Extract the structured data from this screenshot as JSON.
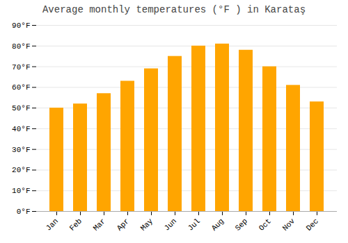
{
  "chart_data": {
    "type": "bar",
    "title": "Average monthly temperatures (°F ) in Karataş",
    "categories": [
      "Jan",
      "Feb",
      "Mar",
      "Apr",
      "May",
      "Jun",
      "Jul",
      "Aug",
      "Sep",
      "Oct",
      "Nov",
      "Dec"
    ],
    "values": [
      50,
      52,
      57,
      63,
      69,
      75,
      80,
      81,
      78,
      70,
      61,
      53
    ],
    "color": "#FFA500",
    "ylim": [
      0,
      90
    ],
    "yticks": [
      {
        "value": 0,
        "label": "0°F"
      },
      {
        "value": 10,
        "label": "10°F"
      },
      {
        "value": 20,
        "label": "20°F"
      },
      {
        "value": 30,
        "label": "30°F"
      },
      {
        "value": 40,
        "label": "40°F"
      },
      {
        "value": 50,
        "label": "50°F"
      },
      {
        "value": 60,
        "label": "60°F"
      },
      {
        "value": 70,
        "label": "70°F"
      },
      {
        "value": 80,
        "label": "80°F"
      },
      {
        "value": 90,
        "label": "90°F"
      }
    ],
    "grid": true
  }
}
